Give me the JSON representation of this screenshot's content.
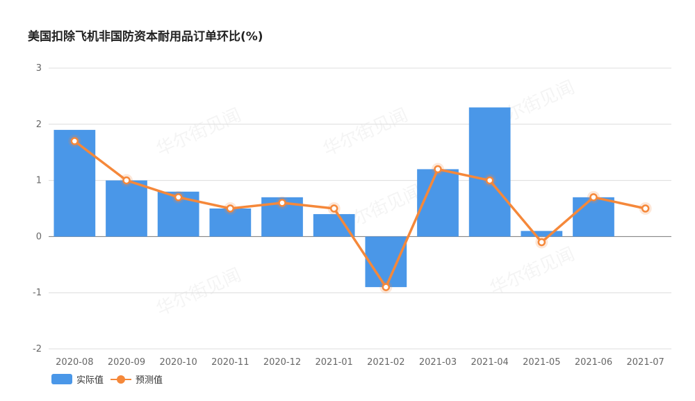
{
  "title": "美国扣除飞机非国防资本耐用品订单环比(%)",
  "watermark_text": "华尔街见闻",
  "chart_data": {
    "type": "bar",
    "categories": [
      "2020-08",
      "2020-09",
      "2020-10",
      "2020-11",
      "2020-12",
      "2021-01",
      "2021-02",
      "2021-03",
      "2021-04",
      "2021-05",
      "2021-06",
      "2021-07"
    ],
    "series": [
      {
        "name": "实际值",
        "type": "bar",
        "color": "#4a97e8",
        "values": [
          1.9,
          1.0,
          0.8,
          0.5,
          0.7,
          0.4,
          -0.9,
          1.2,
          2.3,
          0.1,
          0.7,
          null
        ]
      },
      {
        "name": "预测值",
        "type": "line",
        "color": "#f5883a",
        "values": [
          1.7,
          1.0,
          0.7,
          0.5,
          0.6,
          0.5,
          -0.9,
          1.2,
          1.0,
          -0.1,
          0.7,
          0.5
        ]
      }
    ],
    "ylim": [
      -2,
      3
    ],
    "yticks": [
      "3",
      "2",
      "1",
      "0",
      "-1",
      "-2"
    ],
    "grid": true,
    "legend_position": "bottom-left"
  }
}
